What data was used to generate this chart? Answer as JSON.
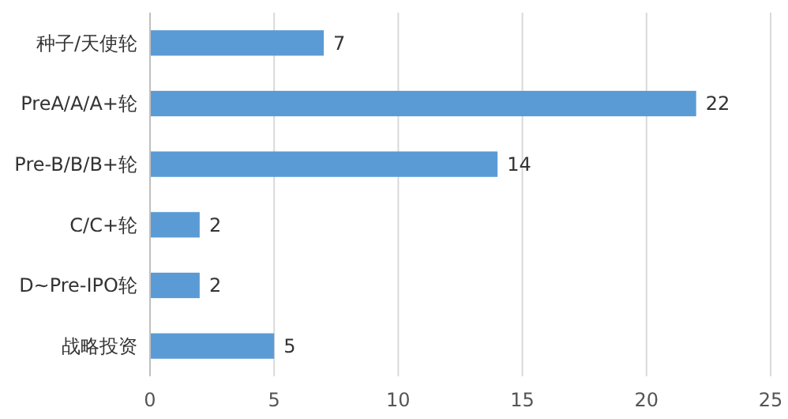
{
  "chart_data": {
    "type": "bar",
    "orientation": "horizontal",
    "categories": [
      "种子/天使轮",
      "PreA/A/A+轮",
      "Pre-B/B/B+轮",
      "C/C+轮",
      "D~Pre-IPO轮",
      "战略投资"
    ],
    "values": [
      7,
      22,
      14,
      2,
      2,
      5
    ],
    "color": "#5b9bd5",
    "xlim": [
      0,
      25
    ],
    "xticks": [
      0,
      5,
      10,
      15,
      20,
      25
    ],
    "grid": "x",
    "data_labels": true
  }
}
